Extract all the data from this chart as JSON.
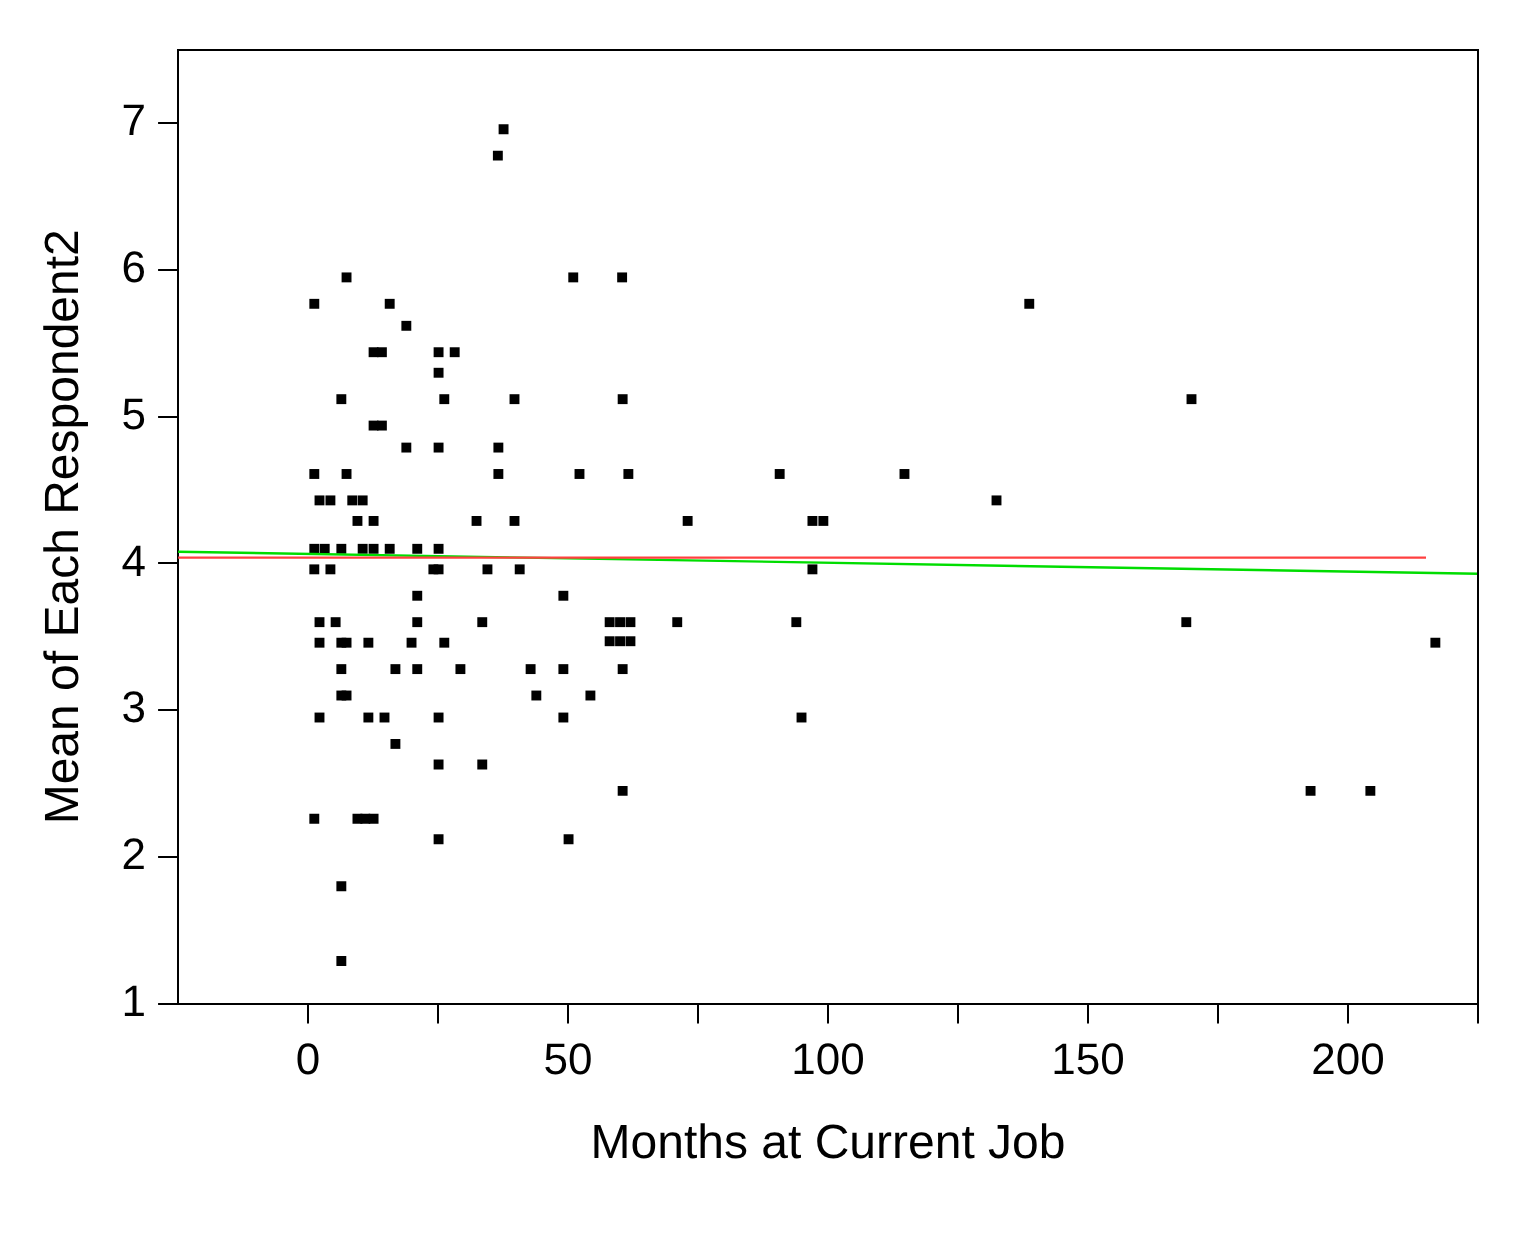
{
  "chart_data": {
    "type": "scatter",
    "xlabel": "Months at Current Job",
    "ylabel": "Mean of Each Respondent2",
    "xlim": [
      -25,
      225
    ],
    "xticks": [
      0,
      {
        "value": 25,
        "label": null
      },
      50,
      {
        "value": 75,
        "label": null
      },
      100,
      {
        "value": 125,
        "label": null
      },
      150,
      {
        "value": 175,
        "label": null
      },
      200,
      {
        "value": 225,
        "label": null
      }
    ],
    "ylim": [
      1,
      7.5
    ],
    "yticks": [
      1,
      2,
      3,
      4,
      5,
      6,
      7
    ],
    "grid": false,
    "series": [
      {
        "marker": "square",
        "color": "#000000",
        "x": [
          37.6,
          36.5,
          7.4,
          51,
          60.4,
          1.2,
          15.7,
          18.9,
          12.6,
          14.2,
          25.1,
          28.2,
          25.1,
          6.4,
          26.2,
          39.7,
          60.5,
          12.6,
          14.2,
          18.9,
          25.1,
          36.6,
          1.2,
          7.4,
          36.6,
          52.2,
          61.6,
          2.2,
          4.3,
          8.5,
          10.5,
          9.5,
          12.6,
          32.4,
          39.7,
          1.2,
          3.2,
          6.4,
          10.5,
          12.6,
          15.7,
          21,
          25.1,
          1.2,
          4.3,
          24.1,
          25.1,
          34.5,
          40.7,
          21,
          49.1,
          2.2,
          5.3,
          21,
          33.5,
          58,
          60,
          62,
          58,
          60,
          62,
          2.2,
          6.4,
          7.4,
          11.6,
          19.9,
          26.2,
          6.4,
          16.8,
          21,
          29.3,
          42.8,
          49.1,
          60.5,
          6.4,
          7.4,
          43.9,
          54.3,
          2.2,
          11.6,
          14.7,
          25.1,
          49.1,
          16.8,
          25.1,
          33.5,
          60.5,
          1.2,
          9.5,
          11,
          12.6,
          25.1,
          50.1,
          6.4,
          6.4,
          138.7,
          169.9,
          90.7,
          114.7,
          132.4,
          73,
          97,
          99.1,
          97,
          71,
          93.9,
          168.9,
          216.8,
          94.9,
          192.8,
          204.3
        ],
        "values": [
          6.96,
          6.78,
          5.95,
          5.95,
          5.95,
          5.77,
          5.77,
          5.62,
          5.44,
          5.44,
          5.44,
          5.44,
          5.3,
          5.12,
          5.12,
          5.12,
          5.12,
          4.94,
          4.94,
          4.79,
          4.79,
          4.79,
          4.61,
          4.61,
          4.61,
          4.61,
          4.61,
          4.43,
          4.43,
          4.43,
          4.43,
          4.29,
          4.29,
          4.29,
          4.29,
          4.1,
          4.1,
          4.1,
          4.1,
          4.1,
          4.1,
          4.1,
          4.1,
          3.96,
          3.96,
          3.96,
          3.96,
          3.96,
          3.96,
          3.78,
          3.78,
          3.6,
          3.6,
          3.6,
          3.6,
          3.6,
          3.6,
          3.6,
          3.47,
          3.47,
          3.47,
          3.46,
          3.46,
          3.46,
          3.46,
          3.46,
          3.46,
          3.28,
          3.28,
          3.28,
          3.28,
          3.28,
          3.28,
          3.28,
          3.1,
          3.1,
          3.1,
          3.1,
          2.95,
          2.95,
          2.95,
          2.95,
          2.95,
          2.77,
          2.63,
          2.63,
          2.45,
          2.26,
          2.26,
          2.26,
          2.26,
          2.12,
          2.12,
          1.8,
          1.29,
          5.77,
          5.12,
          4.61,
          4.61,
          4.43,
          4.29,
          4.29,
          4.29,
          3.96,
          3.6,
          3.6,
          3.6,
          3.46,
          2.95,
          2.45,
          2.45
        ]
      },
      {
        "type": "line",
        "marker": "none",
        "color": "#ff4040",
        "x": [
          -25,
          215
        ],
        "values": [
          4.04,
          4.04
        ]
      },
      {
        "type": "line",
        "marker": "none",
        "color": "#00dd00",
        "x": [
          -25,
          225
        ],
        "values": [
          4.08,
          3.93
        ]
      }
    ]
  }
}
